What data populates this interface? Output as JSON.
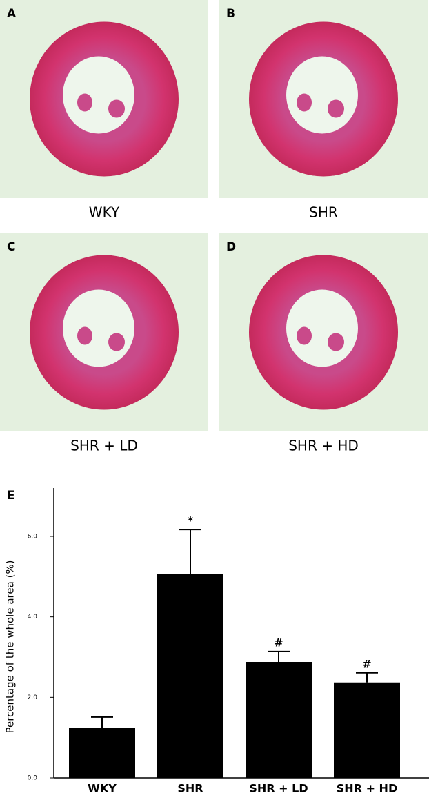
{
  "panels": [
    {
      "letter": "A",
      "caption": "WKY"
    },
    {
      "letter": "B",
      "caption": "SHR"
    },
    {
      "letter": "C",
      "caption": "SHR + LD"
    },
    {
      "letter": "D",
      "caption": "SHR + HD"
    }
  ],
  "chart_data": {
    "type": "bar",
    "panel_letter": "E",
    "ylabel": "Percentage of the whole area (%)",
    "categories": [
      "WKY",
      "SHR",
      "SHR + LD",
      "SHR + HD"
    ],
    "values": [
      1.24,
      5.07,
      2.88,
      2.37
    ],
    "errors": [
      0.27,
      1.1,
      0.26,
      0.24
    ],
    "markers": [
      null,
      "*",
      "#",
      "#"
    ],
    "color": "#000000",
    "ylim": [
      0,
      7.2
    ],
    "yticks": [
      {
        "value": 0,
        "label": "0.0"
      },
      {
        "value": 2,
        "label": "2.0"
      },
      {
        "value": 4,
        "label": "4.0"
      },
      {
        "value": 6,
        "label": "6.0"
      }
    ]
  }
}
